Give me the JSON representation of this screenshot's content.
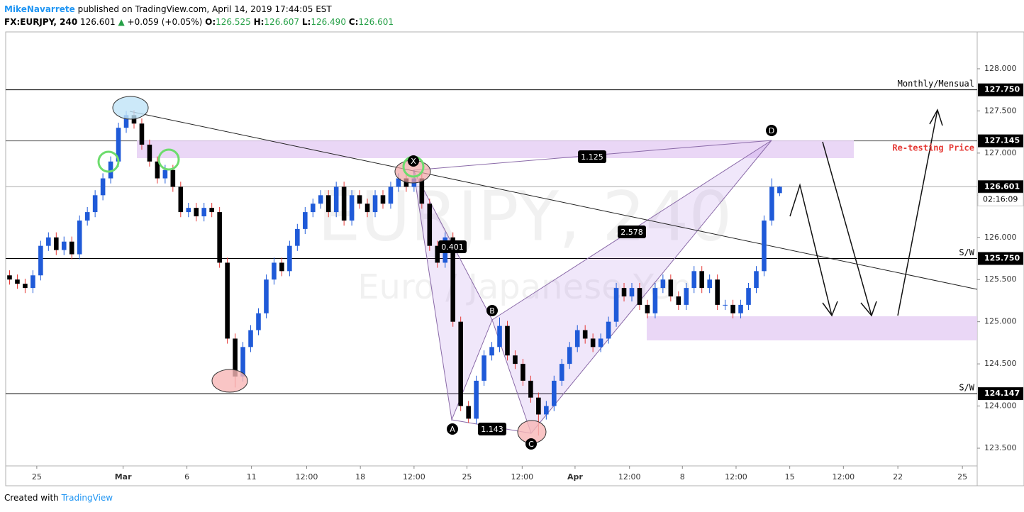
{
  "header": {
    "author": "MikeNavarrete",
    "published": "published on TradingView.com, April 14, 2019 17:44:05 EST",
    "symbol": "FX:EURJPY, 240",
    "last": "126.601",
    "arrow": "▲",
    "change": "+0.059 (+0.05%)",
    "o_label": "O:",
    "o": "126.525",
    "h_label": "H:",
    "h": "126.607",
    "l_label": "L:",
    "l": "126.490",
    "c_label": "C:",
    "c": "126.601"
  },
  "watermark": {
    "symbol": "EURJPY, 240",
    "name": "Euro / Japanese Yen"
  },
  "footer": {
    "created": "Created with",
    "brand": "TradingView"
  },
  "chart_data": {
    "type": "candlestick",
    "up_color": "#1f5ad8",
    "down_color": "#000000",
    "wick_down_color": "#e53935",
    "x": [
      0,
      1,
      2,
      3,
      4,
      5,
      6,
      7,
      8,
      9,
      10,
      11,
      12,
      13,
      14,
      15,
      16,
      17,
      18,
      19,
      20,
      21,
      22,
      23,
      24,
      25,
      26,
      27,
      28,
      29,
      30,
      31,
      32,
      33,
      34,
      35,
      36,
      37,
      38,
      39,
      40,
      41,
      42,
      43,
      44,
      45,
      46,
      47,
      48,
      49,
      50,
      51,
      52,
      53,
      54,
      55,
      56,
      57,
      58,
      59,
      60,
      61,
      62,
      63,
      64,
      65,
      66,
      67,
      68,
      69,
      70,
      71,
      72,
      73,
      74,
      75,
      76,
      77,
      78,
      79,
      80,
      81,
      82,
      83,
      84,
      85,
      86,
      87,
      88,
      89,
      90,
      91,
      92,
      93,
      94,
      95,
      96,
      97,
      98,
      99
    ],
    "candles": [
      [
        125.55,
        125.61,
        125.44,
        125.5
      ],
      [
        125.5,
        125.56,
        125.39,
        125.45
      ],
      [
        125.45,
        125.51,
        125.34,
        125.4
      ],
      [
        125.4,
        125.61,
        125.34,
        125.55
      ],
      [
        125.55,
        125.96,
        125.49,
        125.9
      ],
      [
        125.9,
        126.06,
        125.84,
        126.0
      ],
      [
        126.0,
        126.06,
        125.79,
        125.85
      ],
      [
        125.85,
        126.01,
        125.79,
        125.95
      ],
      [
        125.95,
        126.01,
        125.74,
        125.8
      ],
      [
        125.8,
        126.26,
        125.74,
        126.2
      ],
      [
        126.2,
        126.36,
        126.14,
        126.3
      ],
      [
        126.3,
        126.56,
        126.24,
        126.5
      ],
      [
        126.5,
        126.76,
        126.44,
        126.7
      ],
      [
        126.7,
        126.96,
        126.64,
        126.9
      ],
      [
        126.9,
        127.36,
        126.84,
        127.3
      ],
      [
        127.3,
        127.5,
        127.24,
        127.45
      ],
      [
        127.45,
        127.51,
        127.29,
        127.35
      ],
      [
        127.35,
        127.41,
        127.04,
        127.1
      ],
      [
        127.1,
        127.16,
        126.84,
        126.9
      ],
      [
        126.9,
        126.96,
        126.64,
        126.7
      ],
      [
        126.7,
        126.86,
        126.64,
        126.8
      ],
      [
        126.8,
        126.86,
        126.54,
        126.6
      ],
      [
        126.6,
        126.66,
        126.24,
        126.3
      ],
      [
        126.3,
        126.41,
        126.24,
        126.35
      ],
      [
        126.35,
        126.41,
        126.19,
        126.25
      ],
      [
        126.25,
        126.41,
        126.19,
        126.35
      ],
      [
        126.35,
        126.41,
        126.24,
        126.3
      ],
      [
        126.3,
        126.36,
        125.64,
        125.7
      ],
      [
        125.7,
        125.76,
        124.74,
        124.8
      ],
      [
        124.8,
        124.86,
        124.22,
        124.35
      ],
      [
        124.35,
        124.76,
        124.29,
        124.7
      ],
      [
        124.7,
        124.96,
        124.64,
        124.9
      ],
      [
        124.9,
        125.16,
        124.84,
        125.1
      ],
      [
        125.1,
        125.56,
        125.04,
        125.5
      ],
      [
        125.5,
        125.76,
        125.44,
        125.7
      ],
      [
        125.7,
        125.76,
        125.54,
        125.6
      ],
      [
        125.6,
        125.96,
        125.54,
        125.9
      ],
      [
        125.9,
        126.16,
        125.84,
        126.1
      ],
      [
        126.1,
        126.36,
        126.04,
        126.3
      ],
      [
        126.3,
        126.46,
        126.24,
        126.4
      ],
      [
        126.4,
        126.56,
        126.34,
        126.5
      ],
      [
        126.5,
        126.56,
        126.24,
        126.3
      ],
      [
        126.3,
        126.66,
        126.24,
        126.6
      ],
      [
        126.6,
        126.66,
        126.14,
        126.2
      ],
      [
        126.2,
        126.56,
        126.14,
        126.5
      ],
      [
        126.5,
        126.56,
        126.34,
        126.4
      ],
      [
        126.4,
        126.46,
        126.24,
        126.3
      ],
      [
        126.3,
        126.56,
        126.24,
        126.5
      ],
      [
        126.5,
        126.56,
        126.34,
        126.4
      ],
      [
        126.4,
        126.66,
        126.34,
        126.6
      ],
      [
        126.6,
        126.76,
        126.54,
        126.7
      ],
      [
        126.7,
        126.76,
        126.54,
        126.6
      ],
      [
        126.6,
        126.8,
        126.54,
        126.7
      ],
      [
        126.7,
        126.76,
        126.34,
        126.4
      ],
      [
        126.4,
        126.46,
        125.84,
        125.9
      ],
      [
        125.9,
        125.96,
        125.64,
        125.7
      ],
      [
        125.7,
        126.06,
        125.64,
        126.0
      ],
      [
        126.0,
        126.06,
        124.94,
        125.0
      ],
      [
        125.0,
        125.06,
        123.94,
        124.0
      ],
      [
        124.0,
        124.06,
        123.8,
        123.85
      ],
      [
        123.85,
        124.36,
        123.79,
        124.3
      ],
      [
        124.3,
        124.66,
        124.24,
        124.6
      ],
      [
        124.6,
        124.76,
        124.54,
        124.7
      ],
      [
        124.7,
        125.05,
        124.64,
        124.95
      ],
      [
        124.95,
        125.01,
        124.54,
        124.6
      ],
      [
        124.6,
        124.66,
        124.44,
        124.5
      ],
      [
        124.5,
        124.56,
        124.24,
        124.3
      ],
      [
        124.3,
        124.36,
        124.04,
        124.1
      ],
      [
        124.1,
        124.16,
        123.65,
        123.9
      ],
      [
        123.9,
        124.06,
        123.84,
        124.0
      ],
      [
        124.0,
        124.36,
        123.94,
        124.3
      ],
      [
        124.3,
        124.56,
        124.24,
        124.5
      ],
      [
        124.5,
        124.76,
        124.44,
        124.7
      ],
      [
        124.7,
        124.96,
        124.64,
        124.9
      ],
      [
        124.9,
        124.96,
        124.74,
        124.8
      ],
      [
        124.8,
        124.86,
        124.64,
        124.7
      ],
      [
        124.7,
        124.86,
        124.64,
        124.8
      ],
      [
        124.8,
        125.06,
        124.74,
        125.0
      ],
      [
        125.0,
        125.46,
        124.94,
        125.4
      ],
      [
        125.4,
        125.46,
        125.24,
        125.3
      ],
      [
        125.3,
        125.46,
        125.24,
        125.4
      ],
      [
        125.4,
        125.46,
        125.14,
        125.2
      ],
      [
        125.2,
        125.26,
        125.04,
        125.1
      ],
      [
        125.1,
        125.46,
        125.04,
        125.4
      ],
      [
        125.4,
        125.56,
        125.34,
        125.5
      ],
      [
        125.5,
        125.56,
        125.24,
        125.3
      ],
      [
        125.3,
        125.36,
        125.14,
        125.2
      ],
      [
        125.2,
        125.46,
        125.14,
        125.4
      ],
      [
        125.4,
        125.66,
        125.34,
        125.6
      ],
      [
        125.6,
        125.66,
        125.34,
        125.4
      ],
      [
        125.4,
        125.56,
        125.34,
        125.5
      ],
      [
        125.5,
        125.56,
        125.14,
        125.2
      ],
      [
        125.2,
        125.26,
        125.14,
        125.2
      ],
      [
        125.2,
        125.26,
        125.04,
        125.1
      ],
      [
        125.1,
        125.26,
        125.04,
        125.2
      ],
      [
        125.2,
        125.46,
        125.14,
        125.4
      ],
      [
        125.4,
        125.66,
        125.34,
        125.6
      ],
      [
        125.6,
        126.26,
        125.54,
        126.2
      ],
      [
        126.2,
        126.7,
        126.14,
        126.6
      ],
      [
        126.525,
        126.607,
        126.49,
        126.601
      ]
    ],
    "xlim": [
      -0.5,
      124.4
    ],
    "xticks": [
      {
        "value": 3.5,
        "label": "25"
      },
      {
        "value": 14.6,
        "label": "Mar"
      },
      {
        "value": 22.8,
        "label": "6"
      },
      {
        "value": 31.1,
        "label": "11"
      },
      {
        "value": 38.2,
        "label": "12:00"
      },
      {
        "value": 45.1,
        "label": "18"
      },
      {
        "value": 52.0,
        "label": "12:00"
      },
      {
        "value": 58.8,
        "label": "25"
      },
      {
        "value": 65.9,
        "label": "12:00"
      },
      {
        "value": 72.7,
        "label": "Apr"
      },
      {
        "value": 79.7,
        "label": "12:00"
      },
      {
        "value": 86.5,
        "label": "8"
      },
      {
        "value": 93.4,
        "label": "12:00"
      },
      {
        "value": 100.3,
        "label": "15"
      },
      {
        "value": 107.2,
        "label": "12:00"
      },
      {
        "value": 114.2,
        "label": "22"
      },
      {
        "value": 122.5,
        "label": "25"
      }
    ],
    "ylim": [
      123.29,
      128.437
    ],
    "yticks": [
      {
        "value": 123.5,
        "label": "123.500"
      },
      {
        "value": 124.0,
        "label": "124.000"
      },
      {
        "value": 124.5,
        "label": "124.500"
      },
      {
        "value": 125.0,
        "label": "125.000"
      },
      {
        "value": 125.5,
        "label": "125.500"
      },
      {
        "value": 126.0,
        "label": "126.000"
      },
      {
        "value": 126.5,
        "label": "126.500"
      },
      {
        "value": 127.0,
        "label": "127.000"
      },
      {
        "value": 127.5,
        "label": "127.500"
      },
      {
        "value": 128.0,
        "label": "128.000"
      }
    ],
    "levels": [
      {
        "value": 127.75,
        "label": "127.750",
        "note": "Monthly/Mensual",
        "color": "#000000"
      },
      {
        "value": 127.145,
        "label": "127.145",
        "color": "#555555"
      },
      {
        "value": 126.601,
        "label": "126.601",
        "color": "#aaaaaa"
      },
      {
        "value": 125.75,
        "label": "125.750",
        "note": "S/W",
        "color": "#000000"
      },
      {
        "value": 124.147,
        "label": "124.147",
        "note": "S/W",
        "color": "#000000"
      }
    ],
    "countdown": "02:16:09",
    "pattern_points": [
      "X",
      "A",
      "B",
      "C",
      "D"
    ],
    "ratios": [
      "0.401",
      "1.125",
      "2.578",
      "1.143"
    ],
    "annotation": "Re-testing Price"
  }
}
